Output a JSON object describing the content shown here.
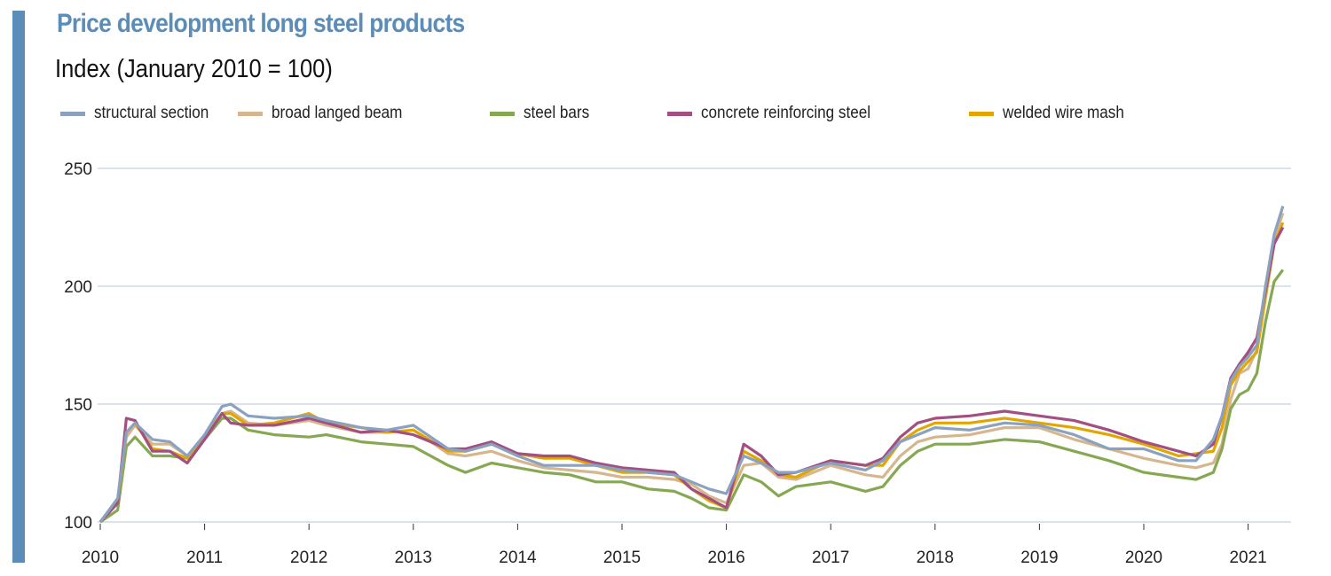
{
  "chart_data": {
    "type": "line",
    "title": "Price development long steel products",
    "subtitle": "Index (January 2010 = 100)",
    "xlabel": "",
    "ylabel": "",
    "x_unit": "months since January 2010",
    "x": [
      0,
      2,
      3,
      4,
      6,
      8,
      10,
      12,
      14,
      15,
      17,
      20,
      24,
      26,
      30,
      33,
      36,
      40,
      42,
      45,
      48,
      51,
      54,
      57,
      60,
      63,
      66,
      68,
      70,
      72,
      74,
      76,
      78,
      80,
      84,
      88,
      90,
      92,
      94,
      96,
      100,
      104,
      108,
      112,
      116,
      120,
      124,
      126,
      128,
      129,
      130,
      131,
      132,
      133,
      134,
      135,
      136
    ],
    "xlim": [
      0,
      137
    ],
    "ylim": [
      100,
      250
    ],
    "yticks": [
      "100",
      "150",
      "200",
      "250"
    ],
    "xticks": [
      "2010",
      "2011",
      "2012",
      "2013",
      "2014",
      "2015",
      "2016",
      "2017",
      "2018",
      "2019",
      "2020",
      "2021"
    ],
    "grid": true,
    "legend_position": "top",
    "series": [
      {
        "name": "structural section",
        "color": "#8aa2bf",
        "values": [
          100,
          110,
          138,
          142,
          135,
          134,
          128,
          137,
          149,
          150,
          145,
          144,
          145,
          143,
          140,
          139,
          141,
          131,
          130,
          133,
          128,
          124,
          124,
          124,
          122,
          121,
          120,
          117,
          114,
          112,
          128,
          125,
          121,
          121,
          125,
          122,
          126,
          134,
          137,
          140,
          139,
          142,
          141,
          137,
          131,
          131,
          126,
          126,
          135,
          145,
          160,
          166,
          170,
          175,
          200,
          222,
          234
        ]
      },
      {
        "name": "broad langed beam",
        "color": "#d6b68e",
        "values": [
          100,
          108,
          136,
          141,
          133,
          133,
          128,
          136,
          146,
          147,
          142,
          141,
          143,
          141,
          138,
          138,
          139,
          129,
          128,
          130,
          126,
          123,
          122,
          121,
          119,
          119,
          118,
          116,
          111,
          108,
          124,
          125,
          119,
          118,
          124,
          120,
          119,
          128,
          134,
          136,
          137,
          140,
          140,
          135,
          131,
          127,
          124,
          123,
          125,
          133,
          152,
          163,
          165,
          173,
          200,
          220,
          231
        ]
      },
      {
        "name": "steel bars",
        "color": "#86a852",
        "values": [
          100,
          105,
          132,
          136,
          128,
          128,
          127,
          135,
          144,
          144,
          139,
          137,
          136,
          137,
          134,
          133,
          132,
          124,
          121,
          125,
          123,
          121,
          120,
          117,
          117,
          114,
          113,
          110,
          106,
          105,
          120,
          117,
          111,
          115,
          117,
          113,
          115,
          124,
          130,
          133,
          133,
          135,
          134,
          130,
          126,
          121,
          119,
          118,
          121,
          131,
          148,
          154,
          156,
          163,
          185,
          202,
          207
        ]
      },
      {
        "name": "concrete reinforcing steel",
        "color": "#a24f82",
        "values": [
          100,
          108,
          144,
          143,
          130,
          130,
          125,
          135,
          146,
          142,
          141,
          141,
          144,
          142,
          138,
          139,
          137,
          131,
          131,
          134,
          129,
          128,
          128,
          125,
          123,
          122,
          121,
          114,
          110,
          106,
          133,
          128,
          120,
          121,
          126,
          124,
          127,
          136,
          142,
          144,
          145,
          147,
          145,
          143,
          139,
          134,
          130,
          128,
          133,
          145,
          161,
          167,
          172,
          178,
          198,
          218,
          225
        ]
      },
      {
        "name": "welded wire mash",
        "color": "#e3a600",
        "values": [
          100,
          108,
          138,
          142,
          131,
          130,
          127,
          136,
          146,
          146,
          141,
          142,
          146,
          142,
          140,
          138,
          139,
          130,
          130,
          133,
          129,
          127,
          127,
          124,
          121,
          121,
          120,
          114,
          109,
          106,
          130,
          126,
          120,
          119,
          126,
          124,
          124,
          134,
          139,
          142,
          142,
          144,
          142,
          140,
          137,
          133,
          128,
          129,
          130,
          140,
          158,
          164,
          168,
          172,
          195,
          218,
          227
        ]
      }
    ]
  }
}
